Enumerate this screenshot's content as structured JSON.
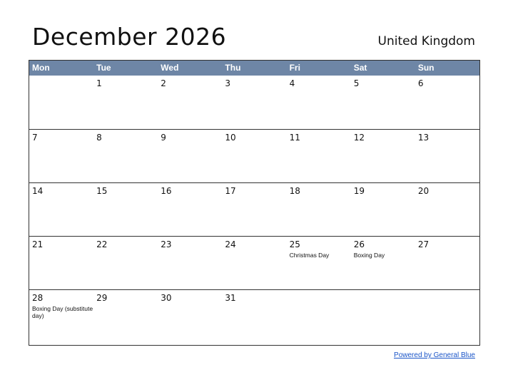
{
  "title": "December 2026",
  "country": "United Kingdom",
  "weekdays": [
    "Mon",
    "Tue",
    "Wed",
    "Thu",
    "Fri",
    "Sat",
    "Sun"
  ],
  "weeks": [
    [
      {
        "day": ""
      },
      {
        "day": "1"
      },
      {
        "day": "2"
      },
      {
        "day": "3"
      },
      {
        "day": "4"
      },
      {
        "day": "5"
      },
      {
        "day": "6"
      }
    ],
    [
      {
        "day": "7"
      },
      {
        "day": "8"
      },
      {
        "day": "9"
      },
      {
        "day": "10"
      },
      {
        "day": "11"
      },
      {
        "day": "12"
      },
      {
        "day": "13"
      }
    ],
    [
      {
        "day": "14"
      },
      {
        "day": "15"
      },
      {
        "day": "16"
      },
      {
        "day": "17"
      },
      {
        "day": "18"
      },
      {
        "day": "19"
      },
      {
        "day": "20"
      }
    ],
    [
      {
        "day": "21"
      },
      {
        "day": "22"
      },
      {
        "day": "23"
      },
      {
        "day": "24"
      },
      {
        "day": "25",
        "holiday": "Christmas Day"
      },
      {
        "day": "26",
        "holiday": "Boxing Day"
      },
      {
        "day": "27"
      }
    ],
    [
      {
        "day": "28",
        "holiday": "Boxing Day (substitute day)"
      },
      {
        "day": "29"
      },
      {
        "day": "30"
      },
      {
        "day": "31"
      },
      {
        "day": ""
      },
      {
        "day": ""
      },
      {
        "day": ""
      }
    ]
  ],
  "footer": "Powered by General Blue",
  "colors": {
    "header_bg": "#6e86a6",
    "link": "#1a55c8"
  }
}
